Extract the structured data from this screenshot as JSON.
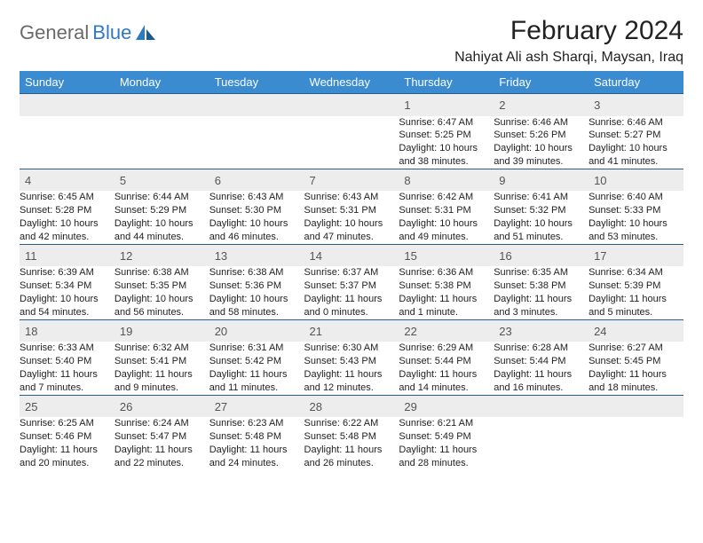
{
  "logo": {
    "text1": "General",
    "text2": "Blue"
  },
  "title": "February 2024",
  "location": "Nahiyat Ali ash Sharqi, Maysan, Iraq",
  "colors": {
    "header_bg": "#3a8bd0",
    "header_fg": "#ffffff",
    "daynum_bg": "#ededed",
    "rule": "#2a5d8a",
    "logo_blue": "#2f79c2",
    "logo_gray": "#6a6a6a"
  },
  "columns": [
    "Sunday",
    "Monday",
    "Tuesday",
    "Wednesday",
    "Thursday",
    "Friday",
    "Saturday"
  ],
  "weeks": [
    [
      null,
      null,
      null,
      null,
      {
        "n": "1",
        "sunrise": "6:47 AM",
        "sunset": "5:25 PM",
        "daylight": "10 hours and 38 minutes."
      },
      {
        "n": "2",
        "sunrise": "6:46 AM",
        "sunset": "5:26 PM",
        "daylight": "10 hours and 39 minutes."
      },
      {
        "n": "3",
        "sunrise": "6:46 AM",
        "sunset": "5:27 PM",
        "daylight": "10 hours and 41 minutes."
      }
    ],
    [
      {
        "n": "4",
        "sunrise": "6:45 AM",
        "sunset": "5:28 PM",
        "daylight": "10 hours and 42 minutes."
      },
      {
        "n": "5",
        "sunrise": "6:44 AM",
        "sunset": "5:29 PM",
        "daylight": "10 hours and 44 minutes."
      },
      {
        "n": "6",
        "sunrise": "6:43 AM",
        "sunset": "5:30 PM",
        "daylight": "10 hours and 46 minutes."
      },
      {
        "n": "7",
        "sunrise": "6:43 AM",
        "sunset": "5:31 PM",
        "daylight": "10 hours and 47 minutes."
      },
      {
        "n": "8",
        "sunrise": "6:42 AM",
        "sunset": "5:31 PM",
        "daylight": "10 hours and 49 minutes."
      },
      {
        "n": "9",
        "sunrise": "6:41 AM",
        "sunset": "5:32 PM",
        "daylight": "10 hours and 51 minutes."
      },
      {
        "n": "10",
        "sunrise": "6:40 AM",
        "sunset": "5:33 PM",
        "daylight": "10 hours and 53 minutes."
      }
    ],
    [
      {
        "n": "11",
        "sunrise": "6:39 AM",
        "sunset": "5:34 PM",
        "daylight": "10 hours and 54 minutes."
      },
      {
        "n": "12",
        "sunrise": "6:38 AM",
        "sunset": "5:35 PM",
        "daylight": "10 hours and 56 minutes."
      },
      {
        "n": "13",
        "sunrise": "6:38 AM",
        "sunset": "5:36 PM",
        "daylight": "10 hours and 58 minutes."
      },
      {
        "n": "14",
        "sunrise": "6:37 AM",
        "sunset": "5:37 PM",
        "daylight": "11 hours and 0 minutes."
      },
      {
        "n": "15",
        "sunrise": "6:36 AM",
        "sunset": "5:38 PM",
        "daylight": "11 hours and 1 minute."
      },
      {
        "n": "16",
        "sunrise": "6:35 AM",
        "sunset": "5:38 PM",
        "daylight": "11 hours and 3 minutes."
      },
      {
        "n": "17",
        "sunrise": "6:34 AM",
        "sunset": "5:39 PM",
        "daylight": "11 hours and 5 minutes."
      }
    ],
    [
      {
        "n": "18",
        "sunrise": "6:33 AM",
        "sunset": "5:40 PM",
        "daylight": "11 hours and 7 minutes."
      },
      {
        "n": "19",
        "sunrise": "6:32 AM",
        "sunset": "5:41 PM",
        "daylight": "11 hours and 9 minutes."
      },
      {
        "n": "20",
        "sunrise": "6:31 AM",
        "sunset": "5:42 PM",
        "daylight": "11 hours and 11 minutes."
      },
      {
        "n": "21",
        "sunrise": "6:30 AM",
        "sunset": "5:43 PM",
        "daylight": "11 hours and 12 minutes."
      },
      {
        "n": "22",
        "sunrise": "6:29 AM",
        "sunset": "5:44 PM",
        "daylight": "11 hours and 14 minutes."
      },
      {
        "n": "23",
        "sunrise": "6:28 AM",
        "sunset": "5:44 PM",
        "daylight": "11 hours and 16 minutes."
      },
      {
        "n": "24",
        "sunrise": "6:27 AM",
        "sunset": "5:45 PM",
        "daylight": "11 hours and 18 minutes."
      }
    ],
    [
      {
        "n": "25",
        "sunrise": "6:25 AM",
        "sunset": "5:46 PM",
        "daylight": "11 hours and 20 minutes."
      },
      {
        "n": "26",
        "sunrise": "6:24 AM",
        "sunset": "5:47 PM",
        "daylight": "11 hours and 22 minutes."
      },
      {
        "n": "27",
        "sunrise": "6:23 AM",
        "sunset": "5:48 PM",
        "daylight": "11 hours and 24 minutes."
      },
      {
        "n": "28",
        "sunrise": "6:22 AM",
        "sunset": "5:48 PM",
        "daylight": "11 hours and 26 minutes."
      },
      {
        "n": "29",
        "sunrise": "6:21 AM",
        "sunset": "5:49 PM",
        "daylight": "11 hours and 28 minutes."
      },
      null,
      null
    ]
  ],
  "labels": {
    "sunrise": "Sunrise: ",
    "sunset": "Sunset: ",
    "daylight": "Daylight: "
  }
}
